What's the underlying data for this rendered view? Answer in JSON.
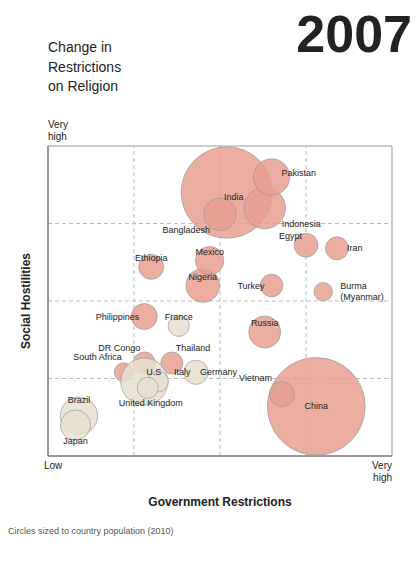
{
  "chart_data": {
    "type": "scatter",
    "title": "Change in\nRestrictions\non Religion",
    "subtitle": "2007",
    "xlabel": "Government Restrictions",
    "ylabel": "Social Hostilities",
    "xlim": [
      0,
      10
    ],
    "ylim": [
      0,
      10
    ],
    "xticks": [
      2.5,
      5.0,
      7.5
    ],
    "yticks": [
      2.5,
      5.0,
      7.5
    ],
    "grid": true,
    "tick_labels": false,
    "categories": [
      "China",
      "India",
      "Indonesia",
      "Pakistan",
      "Bangladesh",
      "Brazil",
      "Nigeria",
      "Russia",
      "Japan",
      "Mexico",
      "Ethiopia",
      "Philippines",
      "Vietnam",
      "Germany",
      "Egypt",
      "Turkey",
      "Iran",
      "DR Congo",
      "Thailand",
      "France",
      "South Africa",
      "U.S",
      "Italy",
      "United Kingdom",
      "Burma\n(Myanmar)"
    ],
    "x": [
      7.8,
      5.2,
      6.3,
      6.5,
      5.0,
      0.9,
      4.5,
      6.3,
      0.8,
      4.7,
      3.0,
      2.8,
      6.8,
      4.3,
      7.5,
      6.5,
      8.4,
      2.8,
      3.6,
      3.8,
      2.2,
      2.8,
      3.2,
      2.9,
      8.0
    ],
    "values": [
      1.6,
      8.5,
      8.0,
      9.0,
      7.8,
      1.3,
      5.5,
      4.0,
      1.0,
      6.3,
      6.1,
      4.5,
      2.0,
      2.7,
      6.8,
      5.5,
      6.7,
      3.0,
      3.0,
      4.2,
      2.7,
      2.4,
      2.4,
      2.2,
      5.3
    ],
    "sizes": [
      1338000000,
      1170000000,
      242000000,
      185000000,
      148000000,
      195000000,
      158000000,
      143000000,
      127000000,
      113000000,
      87000000,
      94000000,
      87000000,
      82000000,
      80000000,
      72000000,
      74000000,
      68000000,
      68000000,
      63000000,
      50000000,
      310000000,
      60000000,
      62000000,
      48000000
    ],
    "colors": [
      "#e8a090",
      "#e8a090",
      "#e8a090",
      "#e8a090",
      "#e8a090",
      "#e8e0d0",
      "#e8a090",
      "#e8a090",
      "#e8e0d0",
      "#e8a090",
      "#e8a090",
      "#e8a090",
      "#e8a090",
      "#e8e0d0",
      "#e8a090",
      "#e8a090",
      "#e8a090",
      "#e8a090",
      "#e8a090",
      "#e8e0d0",
      "#e8a090",
      "#e8e0d0",
      "#e8e0d0",
      "#e8e0d0",
      "#e8a090"
    ],
    "annotations": [
      "Very\nhigh",
      "Low",
      "Very\nhigh",
      "Circles sized to country population (2010)"
    ]
  }
}
